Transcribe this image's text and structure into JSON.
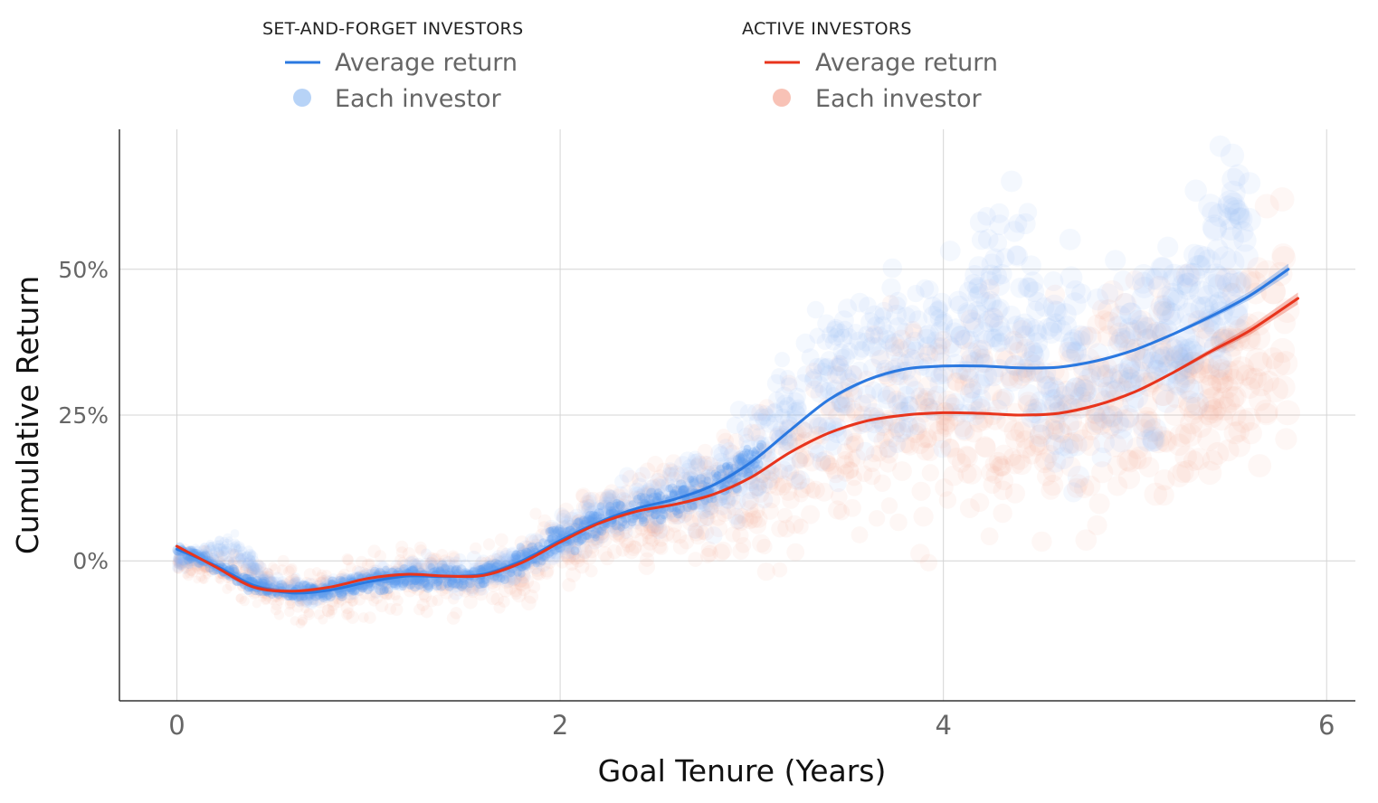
{
  "legend": {
    "groups": [
      {
        "title": "SET-AND-FORGET INVESTORS",
        "line_label": "Average return",
        "point_label": "Each investor",
        "line_color": "#2a78e0",
        "point_color": "#b7d3f7"
      },
      {
        "title": "ACTIVE INVESTORS",
        "line_label": "Average return",
        "point_label": "Each investor",
        "line_color": "#e8341c",
        "point_color": "#f8c2b6"
      }
    ]
  },
  "chart_data": {
    "type": "scatter",
    "xlabel": "Goal Tenure (Years)",
    "ylabel": "Cumulative Return",
    "xlim": [
      -0.3,
      6.15
    ],
    "ylim": [
      -0.24,
      0.74
    ],
    "x_ticks": [
      0,
      2,
      4,
      6
    ],
    "x_tick_labels": [
      "0",
      "2",
      "4",
      "6"
    ],
    "y_ticks": [
      0,
      0.25,
      0.5
    ],
    "y_tick_labels": [
      "0%",
      "25%",
      "50%"
    ],
    "grid": true,
    "legend_position": "top",
    "series": [
      {
        "name": "Average return",
        "group": "SET-AND-FORGET INVESTORS",
        "kind": "line",
        "color": "#2a78e0",
        "x": [
          0,
          0.2,
          0.4,
          0.6,
          0.8,
          1.0,
          1.2,
          1.4,
          1.6,
          1.8,
          2.0,
          2.2,
          2.4,
          2.6,
          2.8,
          3.0,
          3.2,
          3.4,
          3.6,
          3.8,
          4.0,
          4.2,
          4.4,
          4.6,
          4.8,
          5.0,
          5.2,
          5.4,
          5.6,
          5.8
        ],
        "y": [
          0.02,
          -0.008,
          -0.042,
          -0.055,
          -0.05,
          -0.036,
          -0.026,
          -0.027,
          -0.023,
          0.0,
          0.035,
          0.066,
          0.09,
          0.106,
          0.13,
          0.17,
          0.224,
          0.276,
          0.31,
          0.329,
          0.334,
          0.334,
          0.331,
          0.332,
          0.343,
          0.362,
          0.389,
          0.42,
          0.455,
          0.5
        ]
      },
      {
        "name": "Average return",
        "group": "ACTIVE INVESTORS",
        "kind": "line",
        "color": "#e8341c",
        "x": [
          0,
          0.2,
          0.4,
          0.6,
          0.8,
          1.0,
          1.2,
          1.4,
          1.6,
          1.8,
          2.0,
          2.2,
          2.4,
          2.6,
          2.8,
          3.0,
          3.2,
          3.4,
          3.6,
          3.8,
          4.0,
          4.2,
          4.4,
          4.6,
          4.8,
          5.0,
          5.2,
          5.4,
          5.6,
          5.85
        ],
        "y": [
          0.025,
          -0.01,
          -0.045,
          -0.052,
          -0.045,
          -0.03,
          -0.023,
          -0.026,
          -0.025,
          -0.003,
          0.032,
          0.064,
          0.085,
          0.097,
          0.114,
          0.144,
          0.186,
          0.219,
          0.24,
          0.25,
          0.254,
          0.253,
          0.25,
          0.253,
          0.267,
          0.29,
          0.323,
          0.36,
          0.395,
          0.45
        ]
      },
      {
        "name": "Each investor",
        "group": "SET-AND-FORGET INVESTORS",
        "kind": "points",
        "color": "#8fb9f2",
        "x": [
          0,
          0.3,
          0.5,
          0.7,
          0.9,
          1.1,
          1.3,
          1.5,
          1.7,
          1.9,
          2.1,
          2.3,
          2.5,
          2.7,
          2.9,
          3.05,
          3.2,
          3.4,
          3.6,
          3.8,
          4.0,
          4.2,
          4.3,
          4.5,
          4.7,
          5.0,
          5.3,
          5.5,
          5.6
        ],
        "y_center": [
          0.0,
          0.02,
          -0.04,
          -0.06,
          -0.04,
          -0.03,
          -0.02,
          -0.03,
          -0.01,
          0.02,
          0.06,
          0.09,
          0.1,
          0.12,
          0.15,
          0.2,
          0.25,
          0.3,
          0.33,
          0.34,
          0.36,
          0.42,
          0.47,
          0.33,
          0.32,
          0.36,
          0.42,
          0.55,
          0.6
        ],
        "y_spread": [
          0.02,
          0.04,
          0.03,
          0.03,
          0.03,
          0.03,
          0.04,
          0.04,
          0.04,
          0.05,
          0.06,
          0.07,
          0.08,
          0.1,
          0.12,
          0.18,
          0.2,
          0.22,
          0.25,
          0.27,
          0.3,
          0.3,
          0.3,
          0.28,
          0.28,
          0.3,
          0.3,
          0.32,
          0.3
        ]
      },
      {
        "name": "Each investor",
        "group": "ACTIVE INVESTORS",
        "kind": "points",
        "color": "#f4a593",
        "x": [
          0,
          0.3,
          0.5,
          0.7,
          0.9,
          1.1,
          1.3,
          1.5,
          1.7,
          1.9,
          2.1,
          2.3,
          2.5,
          2.7,
          2.9,
          3.05,
          3.2,
          3.4,
          3.6,
          3.8,
          4.0,
          4.2,
          4.3,
          4.5,
          4.7,
          5.0,
          5.3,
          5.5,
          5.8
        ],
        "y_center": [
          0.0,
          -0.02,
          -0.05,
          -0.06,
          -0.05,
          -0.04,
          -0.03,
          -0.03,
          -0.02,
          0.0,
          0.04,
          0.07,
          0.08,
          0.09,
          0.1,
          0.12,
          0.17,
          0.2,
          0.22,
          0.24,
          0.25,
          0.26,
          0.26,
          0.25,
          0.26,
          0.28,
          0.3,
          0.34,
          0.4
        ],
        "y_spread": [
          0.03,
          0.06,
          0.07,
          0.08,
          0.08,
          0.08,
          0.09,
          0.09,
          0.09,
          0.1,
          0.11,
          0.12,
          0.13,
          0.15,
          0.17,
          0.2,
          0.22,
          0.24,
          0.26,
          0.28,
          0.3,
          0.3,
          0.3,
          0.29,
          0.29,
          0.3,
          0.3,
          0.32,
          0.32
        ]
      }
    ]
  }
}
